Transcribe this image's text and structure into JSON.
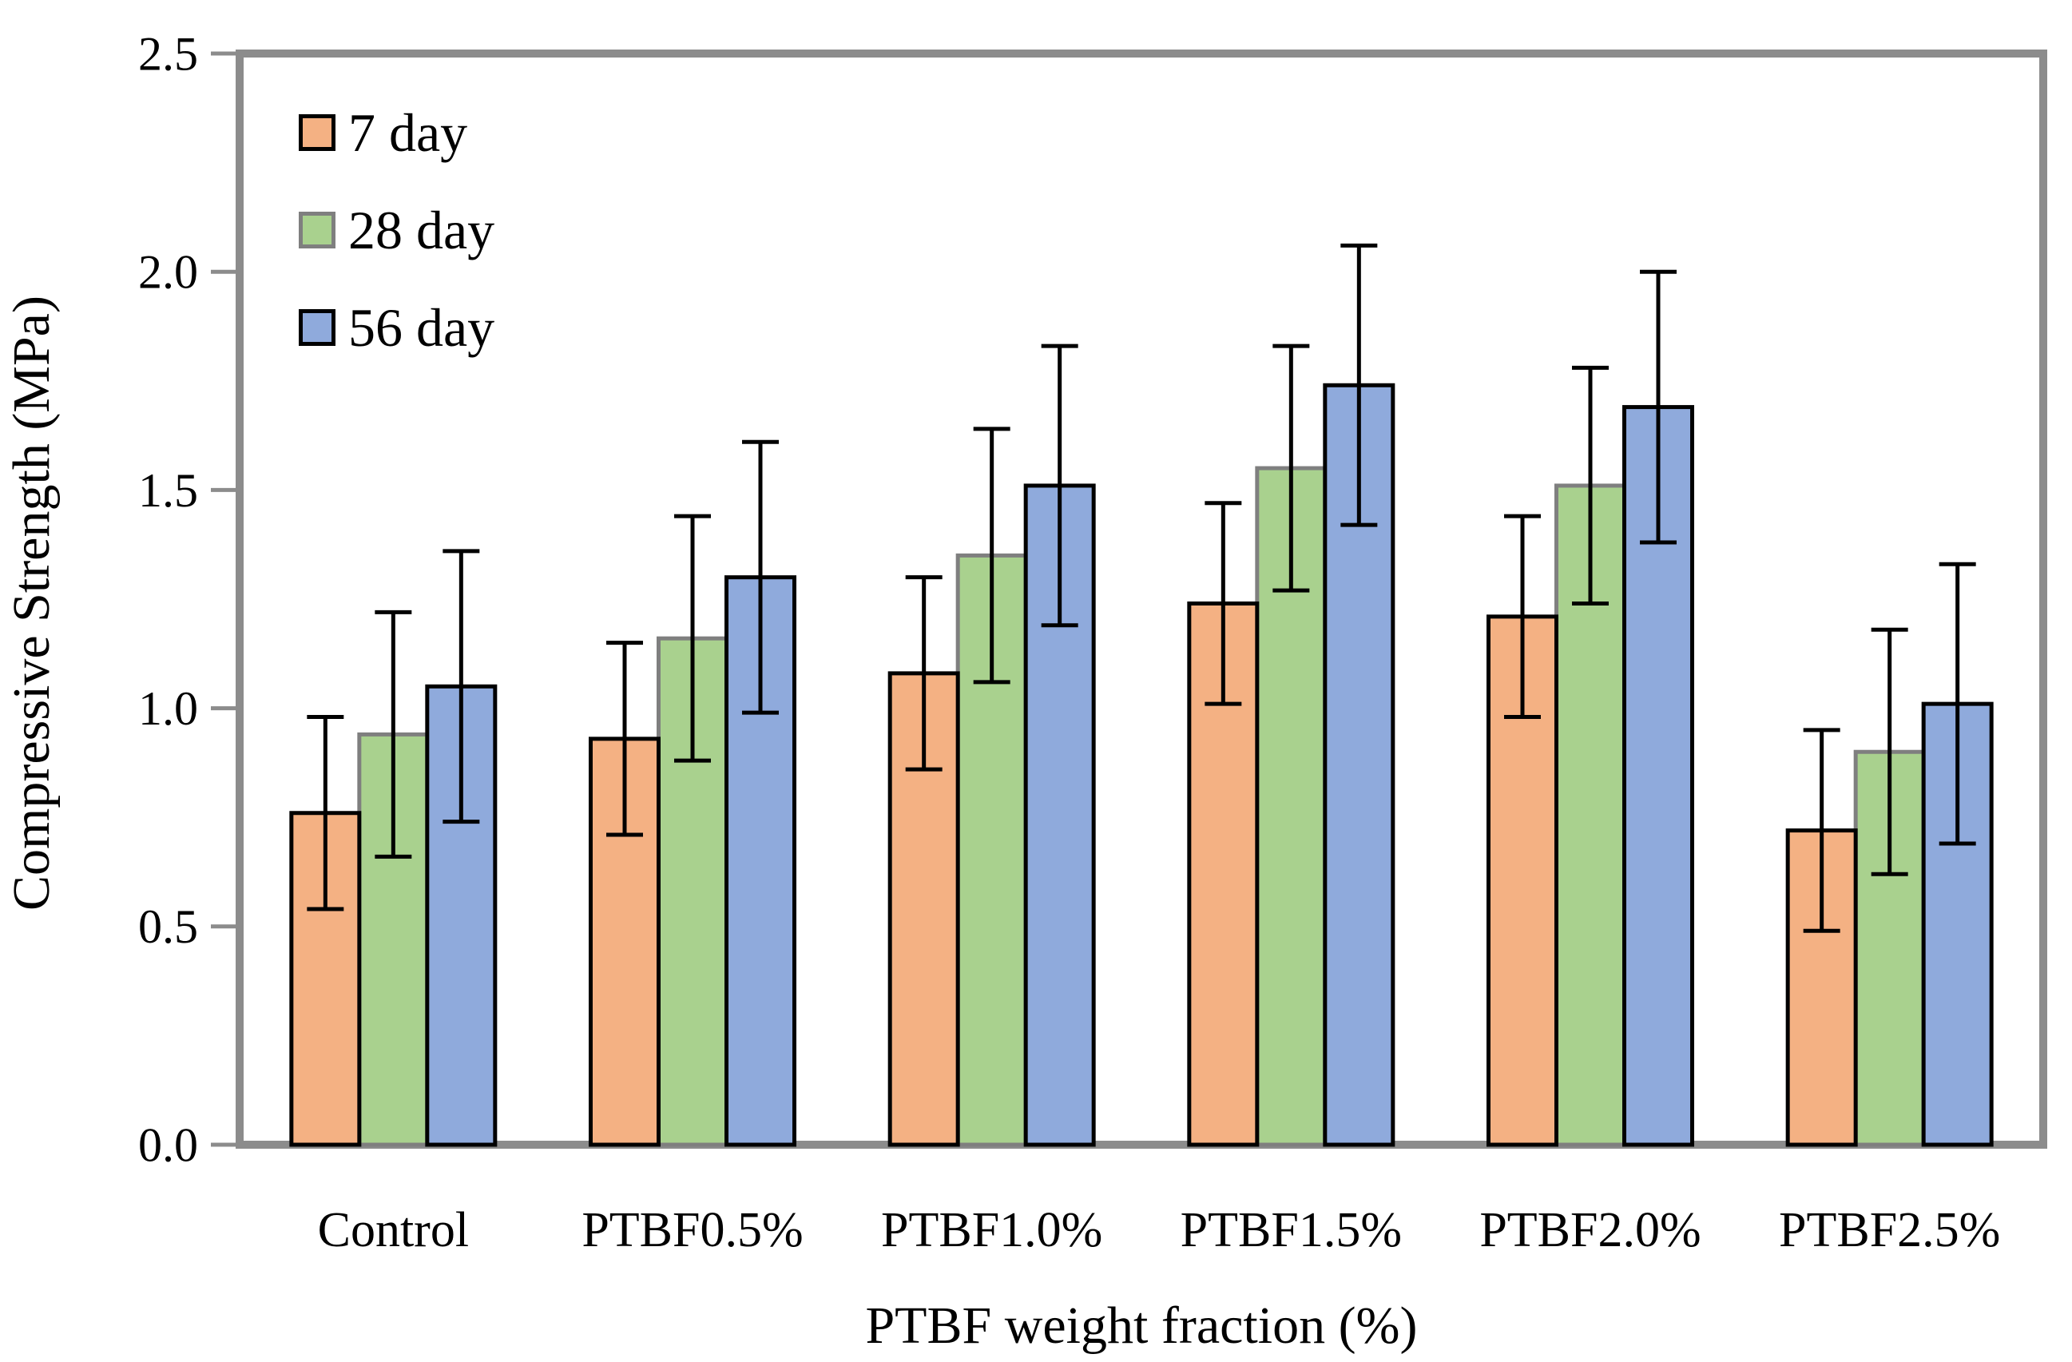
{
  "chart_data": {
    "type": "bar",
    "title": "",
    "xlabel": "PTBF weight fraction (%)",
    "ylabel": "Compressive Strength (MPa)",
    "categories": [
      "Control",
      "PTBF0.5%",
      "PTBF1.0%",
      "PTBF1.5%",
      "PTBF2.0%",
      "PTBF2.5%"
    ],
    "series": [
      {
        "name": "7 day",
        "color": "#F4B183",
        "border_color": "#000000",
        "values": [
          0.76,
          0.93,
          1.08,
          1.24,
          1.21,
          0.72
        ],
        "errors": [
          0.22,
          0.22,
          0.22,
          0.23,
          0.23,
          0.23
        ]
      },
      {
        "name": "28 day",
        "color": "#A9D18E",
        "border_color": "#7F7F7F",
        "values": [
          0.94,
          1.16,
          1.35,
          1.55,
          1.51,
          0.9
        ],
        "errors": [
          0.28,
          0.28,
          0.29,
          0.28,
          0.27,
          0.28
        ]
      },
      {
        "name": "56 day",
        "color": "#8FAADC",
        "border_color": "#000000",
        "values": [
          1.05,
          1.3,
          1.51,
          1.74,
          1.69,
          1.01
        ],
        "errors": [
          0.31,
          0.31,
          0.32,
          0.32,
          0.31,
          0.32
        ]
      }
    ],
    "ylim": [
      0,
      2.5
    ],
    "yticks": [
      "0.0",
      "0.5",
      "1.0",
      "1.5",
      "2.0",
      "2.5"
    ],
    "grid": false,
    "legend_position": "top-left",
    "frame_color": "#8C8C8C",
    "error_bar_color": "#000000",
    "text_color": "#000000"
  }
}
